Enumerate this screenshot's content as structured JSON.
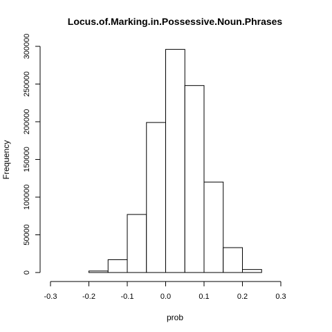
{
  "chart_data": {
    "type": "bar",
    "title": "Locus.of.Marking.in.Possessive.Noun.Phrases",
    "xlabel": "prob",
    "ylabel": "Frequency",
    "bins": [
      {
        "start": -0.3,
        "end": -0.25,
        "value": 0
      },
      {
        "start": -0.25,
        "end": -0.2,
        "value": 0
      },
      {
        "start": -0.2,
        "end": -0.15,
        "value": 2000
      },
      {
        "start": -0.15,
        "end": -0.1,
        "value": 17000
      },
      {
        "start": -0.1,
        "end": -0.05,
        "value": 77000
      },
      {
        "start": -0.05,
        "end": 0.0,
        "value": 199000
      },
      {
        "start": 0.0,
        "end": 0.05,
        "value": 296000
      },
      {
        "start": 0.05,
        "end": 0.1,
        "value": 248000
      },
      {
        "start": 0.1,
        "end": 0.15,
        "value": 120000
      },
      {
        "start": 0.15,
        "end": 0.2,
        "value": 33000
      },
      {
        "start": 0.2,
        "end": 0.25,
        "value": 4000
      },
      {
        "start": 0.25,
        "end": 0.3,
        "value": 0
      },
      {
        "start": 0.3,
        "end": 0.35,
        "value": 0
      }
    ],
    "x_ticks": [
      -0.3,
      -0.2,
      -0.1,
      0.0,
      0.1,
      0.2,
      0.3
    ],
    "x_tick_labels": [
      "-0.3",
      "-0.2",
      "-0.1",
      "0.0",
      "0.1",
      "0.2",
      "0.3"
    ],
    "y_ticks": [
      0,
      50000,
      100000,
      150000,
      200000,
      250000,
      300000
    ],
    "y_tick_labels": [
      "0",
      "50000",
      "100000",
      "150000",
      "200000",
      "250000",
      "300000"
    ],
    "xlim": [
      -0.3,
      0.35
    ],
    "ylim": [
      0,
      300000
    ],
    "grid": false,
    "colors": {
      "bar_fill": "#ffffff",
      "bar_stroke": "#000000"
    }
  }
}
